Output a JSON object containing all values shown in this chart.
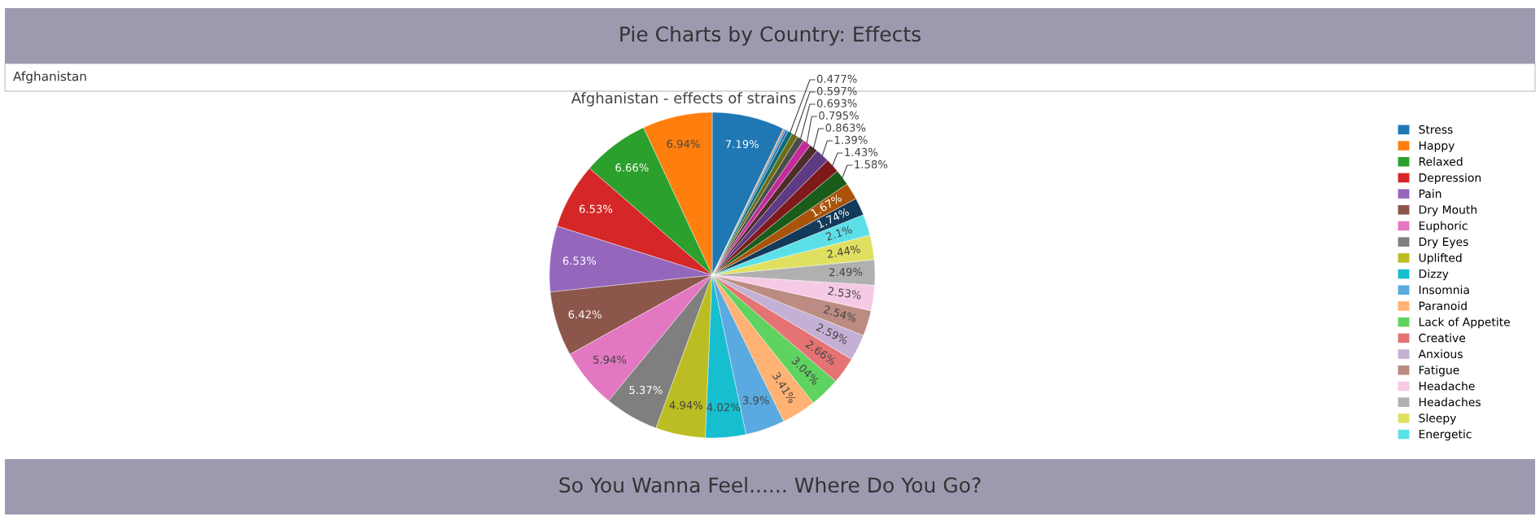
{
  "chart_data": {
    "type": "pie",
    "title": "Afghanistan - effects of strains",
    "annotations": [
      "Pie Charts by Country: Effects",
      "Afghanistan",
      "So You Wanna Feel...... Where Do You Go?"
    ],
    "categories": [
      "Stress",
      "Happy",
      "Relaxed",
      "Depression",
      "Pain",
      "Dry Mouth",
      "Euphoric",
      "Dry Eyes",
      "Uplifted",
      "Dizzy",
      "Insomnia",
      "Paranoid",
      "Lack of Appetite",
      "Creative",
      "Anxious",
      "Fatigue",
      "Headache",
      "Headaches",
      "Sleepy",
      "Energetic",
      null,
      null,
      null,
      null,
      null,
      null,
      null,
      null,
      null,
      null,
      null,
      null,
      null
    ],
    "values": [
      7.19,
      6.94,
      6.66,
      6.53,
      6.53,
      6.42,
      5.94,
      5.37,
      4.94,
      4.02,
      3.9,
      3.41,
      3.04,
      2.66,
      2.59,
      2.54,
      2.53,
      2.49,
      2.44,
      2.1,
      1.74,
      1.67,
      1.58,
      1.43,
      1.39,
      0.863,
      0.795,
      0.693,
      0.597,
      0.477,
      0.25,
      0.175,
      0.1
    ],
    "value_labels": [
      "7.19%",
      "6.94%",
      "6.66%",
      "6.53%",
      "6.53%",
      "6.42%",
      "5.94%",
      "5.37%",
      "4.94%",
      "4.02%",
      "3.9%",
      "3.41%",
      "3.04%",
      "2.66%",
      "2.59%",
      "2.54%",
      "2.53%",
      "2.49%",
      "2.44%",
      "2.1%",
      "1.74%",
      "1.67%",
      "1.58%",
      "1.43%",
      "1.39%",
      "0.863%",
      "0.795%",
      "0.693%",
      "0.597%",
      "0.477%",
      null,
      null,
      null
    ],
    "colors": [
      "#1f77b4",
      "#ff7f0e",
      "#2ca02c",
      "#d62728",
      "#9467bd",
      "#8c564b",
      "#e377c2",
      "#7f7f7f",
      "#bcbd22",
      "#17becf",
      "#5aa9e0",
      "#ffb273",
      "#5fd35f",
      "#e57373",
      "#c5b0d5",
      "#bc8b81",
      "#f6cae5",
      "#b0b0b0",
      "#e0e060",
      "#5ce0e8",
      "#133a5a",
      "#a9540a",
      "#1a5c1a",
      "#7e1a1a",
      "#5e3b84",
      "#4e2c2a",
      "#c42a9c",
      "#4c4c4c",
      "#6b6e14",
      "#0b6d75",
      "#2a6fb0",
      "#3a8fd0",
      "#ff7f0e"
    ],
    "legend": "right"
  }
}
